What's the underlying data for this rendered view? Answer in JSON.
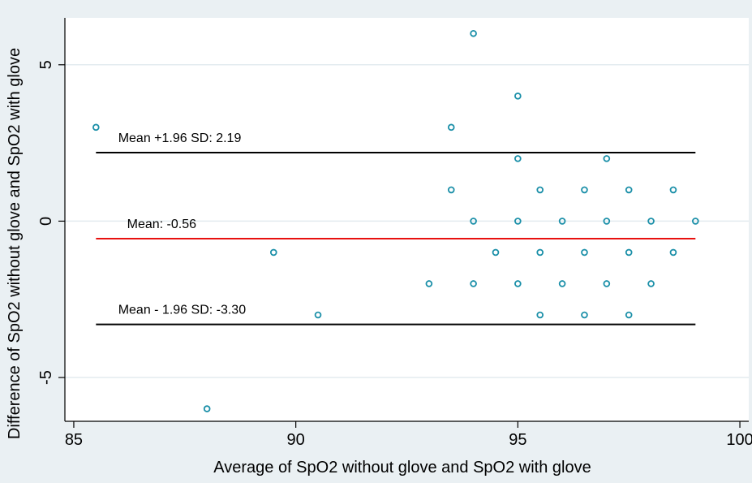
{
  "chart_data": {
    "type": "scatter",
    "title": "",
    "xlabel": "Average of SpO2 without glove and SpO2 with glove",
    "ylabel": "Difference of SpO2 without glove and SpO2 with glove",
    "xlim": [
      84.8,
      100.2
    ],
    "ylim": [
      -6.4,
      6.5
    ],
    "xticks": [
      85,
      90,
      95,
      100
    ],
    "yticks": [
      -5,
      0,
      5
    ],
    "grid": true,
    "point_color": "#1a8fa8",
    "points": [
      {
        "x": 85.5,
        "y": 3
      },
      {
        "x": 88,
        "y": -6
      },
      {
        "x": 89.5,
        "y": -1
      },
      {
        "x": 90.5,
        "y": -3
      },
      {
        "x": 93,
        "y": -2
      },
      {
        "x": 93.5,
        "y": 3
      },
      {
        "x": 93.5,
        "y": 1
      },
      {
        "x": 94,
        "y": 6
      },
      {
        "x": 94,
        "y": 0
      },
      {
        "x": 94,
        "y": -2
      },
      {
        "x": 94.5,
        "y": -1
      },
      {
        "x": 95,
        "y": 4
      },
      {
        "x": 95,
        "y": 2
      },
      {
        "x": 95,
        "y": 0
      },
      {
        "x": 95,
        "y": -2
      },
      {
        "x": 95.5,
        "y": 1
      },
      {
        "x": 95.5,
        "y": -1
      },
      {
        "x": 95.5,
        "y": -3
      },
      {
        "x": 96,
        "y": 0
      },
      {
        "x": 96,
        "y": -2
      },
      {
        "x": 96.5,
        "y": 1
      },
      {
        "x": 96.5,
        "y": -1
      },
      {
        "x": 96.5,
        "y": -3
      },
      {
        "x": 97,
        "y": 2
      },
      {
        "x": 97,
        "y": 0
      },
      {
        "x": 97,
        "y": -2
      },
      {
        "x": 97.5,
        "y": 1
      },
      {
        "x": 97.5,
        "y": -1
      },
      {
        "x": 97.5,
        "y": -3
      },
      {
        "x": 98,
        "y": 0
      },
      {
        "x": 98,
        "y": -2
      },
      {
        "x": 98.5,
        "y": 1
      },
      {
        "x": 98.5,
        "y": -1
      },
      {
        "x": 99,
        "y": 0
      }
    ],
    "reference_lines": [
      {
        "y": 2.19,
        "x_start": 85.5,
        "x_end": 99,
        "label": "Mean +1.96 SD: 2.19",
        "label_x": 86,
        "color": "#000000"
      },
      {
        "y": -0.56,
        "x_start": 85.5,
        "x_end": 99,
        "label": "Mean: -0.56",
        "label_x": 86.2,
        "color": "#e8110f"
      },
      {
        "y": -3.3,
        "x_start": 85.5,
        "x_end": 99,
        "label": "Mean - 1.96 SD: -3.30",
        "label_x": 86,
        "color": "#000000"
      }
    ]
  }
}
